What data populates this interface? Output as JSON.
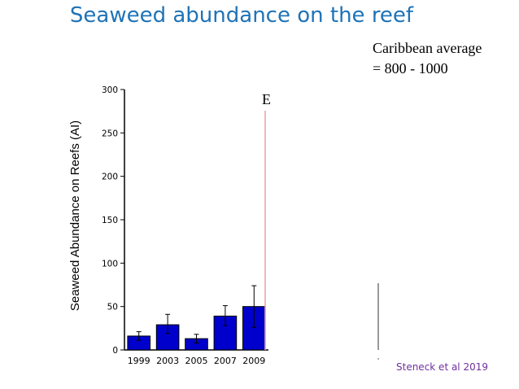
{
  "slide": {
    "title": "Seaweed abundance on the reef",
    "note_line1": "Caribbean average",
    "note_line2": "= 800 - 1000",
    "citation": "Steneck et al 2019",
    "stray_glyph": "E"
  },
  "chart_data": {
    "type": "bar",
    "title": "",
    "xlabel": "",
    "ylabel": "Seaweed Abundance on Reefs (AI)",
    "categories": [
      "1999",
      "2003",
      "2005",
      "2007",
      "2009"
    ],
    "values": [
      16,
      29,
      13,
      39,
      50
    ],
    "error_low": [
      11,
      19,
      8,
      28,
      26
    ],
    "error_high": [
      21,
      41,
      18,
      51,
      74
    ],
    "ylim": [
      0,
      300
    ],
    "yticks": [
      0,
      50,
      100,
      150,
      200,
      250,
      300
    ],
    "grid": false,
    "legend": "none",
    "colors": {
      "bar_fill": "#0000cc",
      "bar_stroke": "#000000",
      "reference_line": "#e8a8a0"
    }
  }
}
